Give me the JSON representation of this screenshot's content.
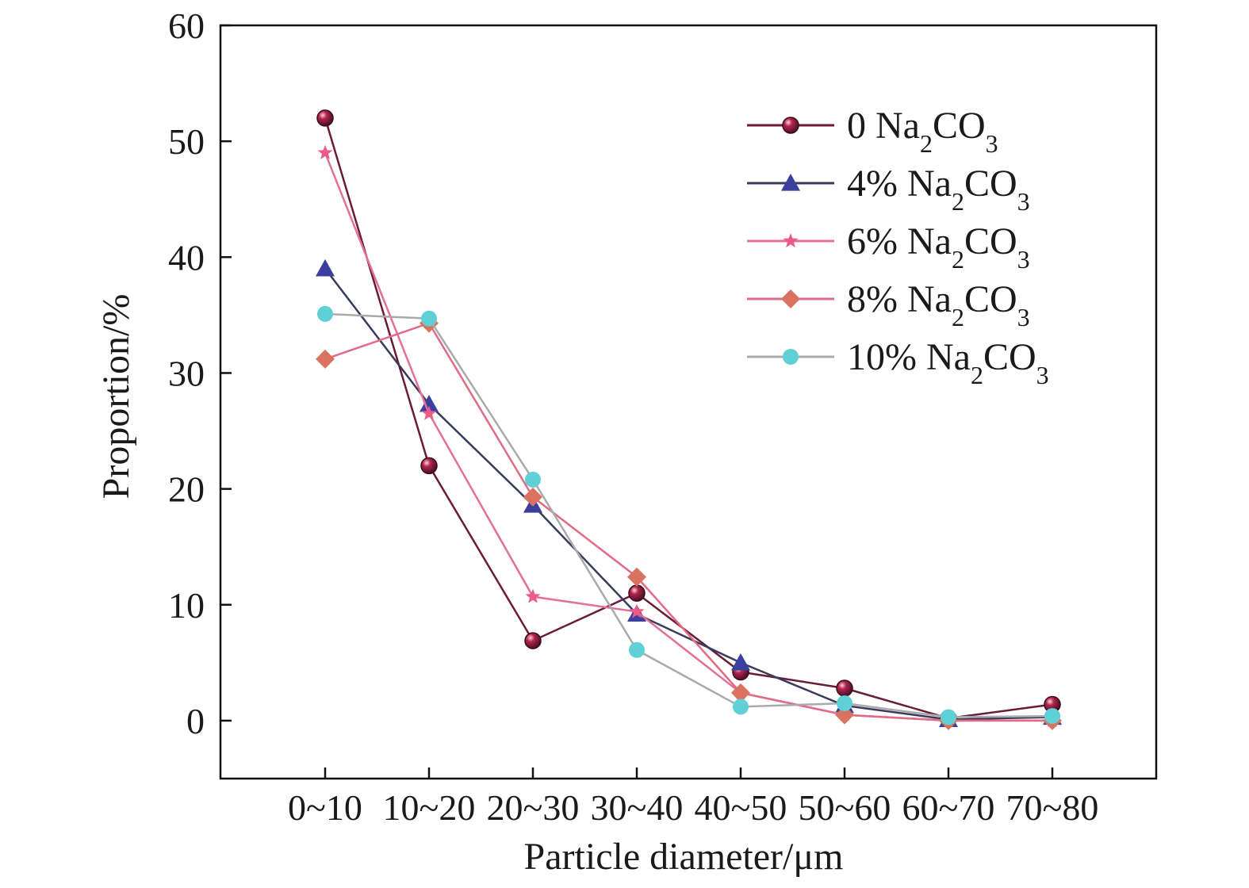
{
  "chart_data": {
    "type": "line",
    "title": "",
    "xlabel": "Particle diameter/μm",
    "ylabel": "Proportion/%",
    "categories": [
      "0~10",
      "10~20",
      "20~30",
      "30~40",
      "40~50",
      "50~60",
      "60~70",
      "70~80"
    ],
    "ylim": [
      -5,
      60
    ],
    "yticks": [
      0,
      10,
      20,
      30,
      40,
      50,
      60
    ],
    "grid": false,
    "legend_position": "top-right",
    "series": [
      {
        "name": "0 Na2CO3",
        "legend_prefix": "0 ",
        "color": "#8e1b3f",
        "line_color": "#6b1a3a",
        "marker": "sphere",
        "values": [
          52.0,
          22.0,
          6.9,
          11.0,
          4.2,
          2.8,
          0.2,
          1.4
        ]
      },
      {
        "name": "4% Na2CO3",
        "legend_prefix": "4% ",
        "color": "#3b3f9e",
        "line_color": "#3a3a5c",
        "marker": "triangle",
        "values": [
          39.0,
          27.3,
          18.6,
          9.2,
          5.0,
          1.3,
          0.1,
          0.3
        ]
      },
      {
        "name": "6% Na2CO3",
        "legend_prefix": "6% ",
        "color": "#ec5a8a",
        "line_color": "#e46f97",
        "marker": "star",
        "values": [
          49.0,
          26.5,
          10.7,
          9.4,
          2.4,
          0.5,
          0.0,
          0.0
        ]
      },
      {
        "name": "8% Na2CO3",
        "legend_prefix": "8% ",
        "color": "#d9735f",
        "line_color": "#e36a84",
        "marker": "diamond",
        "values": [
          31.2,
          34.3,
          19.3,
          12.4,
          2.4,
          0.5,
          0.0,
          0.0
        ]
      },
      {
        "name": "10% Na2CO3",
        "legend_prefix": "10% ",
        "color": "#5fd0d6",
        "line_color": "#aaaaaa",
        "marker": "circle",
        "values": [
          35.1,
          34.7,
          20.8,
          6.1,
          1.2,
          1.5,
          0.3,
          0.4
        ]
      }
    ]
  }
}
